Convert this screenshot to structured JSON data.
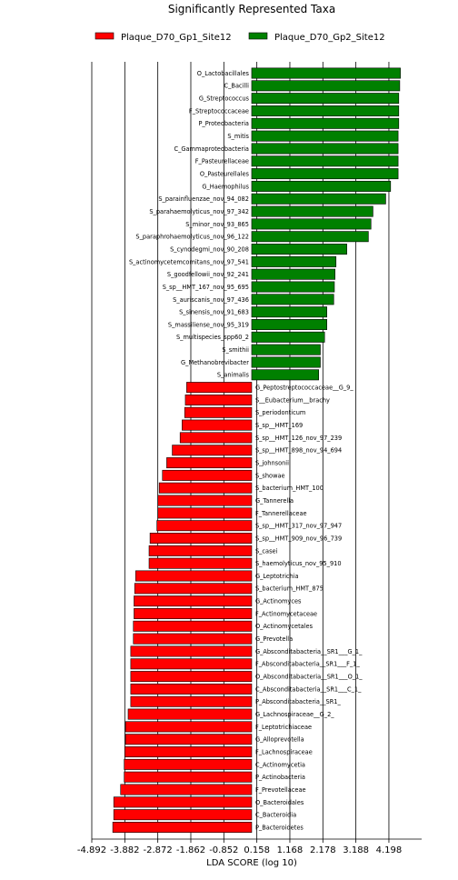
{
  "chart_data": {
    "type": "bar",
    "orientation": "horizontal",
    "title": "Significantly Represented Taxa",
    "xlabel": "LDA SCORE (log 10)",
    "xlim": [
      -4.892,
      5.2
    ],
    "xticks": [
      "-4.892",
      "-3.882",
      "-2.872",
      "-1.862",
      "-0.852",
      "0.158",
      "1.168",
      "2.178",
      "3.188",
      "4.198"
    ],
    "grid": "vertical",
    "legend_position": "top",
    "legend": [
      {
        "name": "Plaque_D70_Gp1_Site12",
        "color": "#ff0000"
      },
      {
        "name": "Plaque_D70_Gp2_Site12",
        "color": "#008000"
      }
    ],
    "bars": [
      {
        "label": "O_Lactobacillales",
        "value": 4.55,
        "group": 1
      },
      {
        "label": "C_Bacilli",
        "value": 4.53,
        "group": 1
      },
      {
        "label": "G_Streptococcus",
        "value": 4.5,
        "group": 1
      },
      {
        "label": "F_Streptococcaceae",
        "value": 4.5,
        "group": 1
      },
      {
        "label": "P_Proteobacteria",
        "value": 4.5,
        "group": 1
      },
      {
        "label": "S_mitis",
        "value": 4.48,
        "group": 1
      },
      {
        "label": "C_Gammaproteobacteria",
        "value": 4.48,
        "group": 1
      },
      {
        "label": "F_Pasteurellaceae",
        "value": 4.48,
        "group": 1
      },
      {
        "label": "O_Pasteurellales",
        "value": 4.48,
        "group": 1
      },
      {
        "label": "G_Haemophilus",
        "value": 4.25,
        "group": 1
      },
      {
        "label": "S_parainfluenzae_nov_94_082",
        "value": 4.1,
        "group": 1
      },
      {
        "label": "S_parahaemolyticus_nov_97_342",
        "value": 3.71,
        "group": 1
      },
      {
        "label": "S_minor_nov_93_865",
        "value": 3.65,
        "group": 1
      },
      {
        "label": "S_paraphrohaemolyticus_nov_96_122",
        "value": 3.57,
        "group": 1
      },
      {
        "label": "S_cynodegmi_nov_90_208",
        "value": 2.91,
        "group": 1
      },
      {
        "label": "S_actinomycetemcomitans_nov_97_541",
        "value": 2.58,
        "group": 1
      },
      {
        "label": "S_goodfellowii_nov_92_241",
        "value": 2.55,
        "group": 1
      },
      {
        "label": "S_sp__HMT_167_nov_95_695",
        "value": 2.53,
        "group": 1
      },
      {
        "label": "S_auriscanis_nov_97_436",
        "value": 2.51,
        "group": 1
      },
      {
        "label": "S_sinensis_nov_91_683",
        "value": 2.3,
        "group": 1
      },
      {
        "label": "S_massiliense_nov_95_319",
        "value": 2.3,
        "group": 1
      },
      {
        "label": "S_multispecies_spp60_2",
        "value": 2.23,
        "group": 1
      },
      {
        "label": "S_smithii",
        "value": 2.1,
        "group": 1
      },
      {
        "label": "G_Methanobrevibacter",
        "value": 2.1,
        "group": 1
      },
      {
        "label": "S_animalis",
        "value": 2.05,
        "group": 1
      },
      {
        "label": "G_Peptostreptococcaceae__G_9_",
        "value": -1.99,
        "group": 0
      },
      {
        "label": "S__Eubacterium__brachy",
        "value": -2.03,
        "group": 0
      },
      {
        "label": "S_periodonticum",
        "value": -2.05,
        "group": 0
      },
      {
        "label": "S_sp__HMT_169",
        "value": -2.13,
        "group": 0
      },
      {
        "label": "S_sp__HMT_126_nov_97_239",
        "value": -2.19,
        "group": 0
      },
      {
        "label": "S_sp__HMT_898_nov_94_694",
        "value": -2.43,
        "group": 0
      },
      {
        "label": "S_johnsonii",
        "value": -2.6,
        "group": 0
      },
      {
        "label": "S_showae",
        "value": -2.73,
        "group": 0
      },
      {
        "label": "S_bacterium_HMT_100",
        "value": -2.83,
        "group": 0
      },
      {
        "label": "G_Tannerella",
        "value": -2.87,
        "group": 0
      },
      {
        "label": "F_Tannerellaceae",
        "value": -2.87,
        "group": 0
      },
      {
        "label": "S_sp__HMT_317_nov_97_947",
        "value": -2.9,
        "group": 0
      },
      {
        "label": "S_sp__HMT_909_nov_96_739",
        "value": -3.11,
        "group": 0
      },
      {
        "label": "S_casei",
        "value": -3.14,
        "group": 0
      },
      {
        "label": "S_haemolyticus_nov_95_910",
        "value": -3.14,
        "group": 0
      },
      {
        "label": "G_Leptotrichia",
        "value": -3.55,
        "group": 0
      },
      {
        "label": "S_bacterium_HMT_875",
        "value": -3.58,
        "group": 0
      },
      {
        "label": "G_Actinomyces",
        "value": -3.6,
        "group": 0
      },
      {
        "label": "F_Actinomycetaceae",
        "value": -3.6,
        "group": 0
      },
      {
        "label": "O_Actinomycetales",
        "value": -3.62,
        "group": 0
      },
      {
        "label": "G_Prevotella",
        "value": -3.62,
        "group": 0
      },
      {
        "label": "G_Absconditabacteria__SR1___G_1_",
        "value": -3.7,
        "group": 0
      },
      {
        "label": "F_Absconditabacteria__SR1___F_1_",
        "value": -3.7,
        "group": 0
      },
      {
        "label": "O_Absconditabacteria__SR1___O_1_",
        "value": -3.7,
        "group": 0
      },
      {
        "label": "C_Absconditabacteria__SR1___C_1_",
        "value": -3.7,
        "group": 0
      },
      {
        "label": "P_Absconditabacteria__SR1_",
        "value": -3.7,
        "group": 0
      },
      {
        "label": "G_Lachnospiraceae__G_2_",
        "value": -3.78,
        "group": 0
      },
      {
        "label": "F_Leptotrichiaceae",
        "value": -3.86,
        "group": 0
      },
      {
        "label": "G_Alloprevotella",
        "value": -3.86,
        "group": 0
      },
      {
        "label": "F_Lachnospiraceae",
        "value": -3.88,
        "group": 0
      },
      {
        "label": "C_Actinomycetia",
        "value": -3.9,
        "group": 0
      },
      {
        "label": "P_Actinobacteria",
        "value": -3.9,
        "group": 0
      },
      {
        "label": "F_Prevotellaceae",
        "value": -4.01,
        "group": 0
      },
      {
        "label": "O_Bacteroidales",
        "value": -4.22,
        "group": 0
      },
      {
        "label": "C_Bacteroidia",
        "value": -4.22,
        "group": 0
      },
      {
        "label": "P_Bacteroidetes",
        "value": -4.25,
        "group": 0
      }
    ]
  }
}
